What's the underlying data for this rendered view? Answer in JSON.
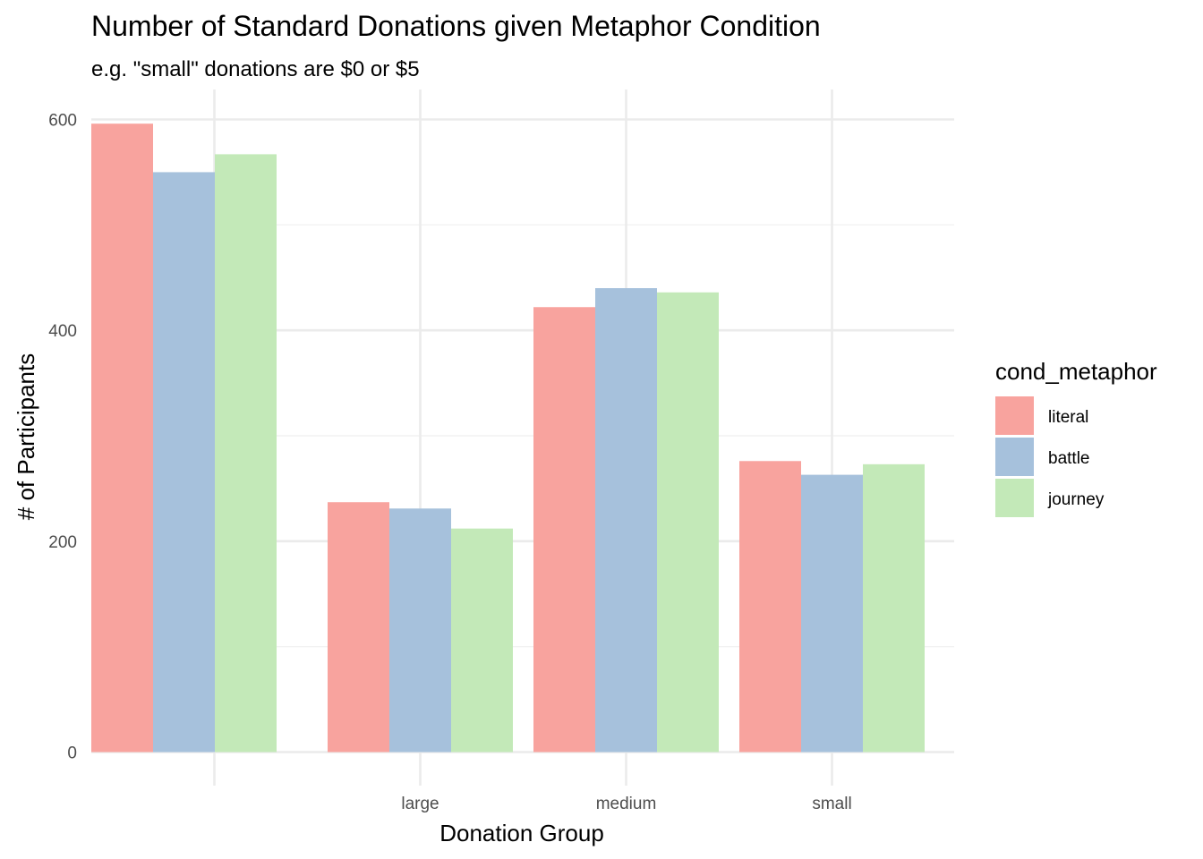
{
  "chart_data": {
    "type": "bar",
    "title": "Number of Standard Donations given Metaphor Condition",
    "subtitle": "e.g. \"small\" donations are $0 or $5",
    "xlabel": "Donation Group",
    "ylabel": "# of Participants",
    "categories": [
      "",
      "large",
      "medium",
      "small"
    ],
    "series": [
      {
        "name": "literal",
        "color": "#F8A39E",
        "values": [
          596,
          237,
          422,
          276
        ]
      },
      {
        "name": "battle",
        "color": "#A6C1DC",
        "values": [
          550,
          231,
          440,
          263
        ]
      },
      {
        "name": "journey",
        "color": "#C3E9B8",
        "values": [
          567,
          212,
          436,
          273
        ]
      }
    ],
    "ylim": [
      0,
      620
    ],
    "yticks": [
      0,
      200,
      400,
      600
    ],
    "grid": true,
    "legend": {
      "title": "cond_metaphor",
      "position": "right"
    }
  }
}
